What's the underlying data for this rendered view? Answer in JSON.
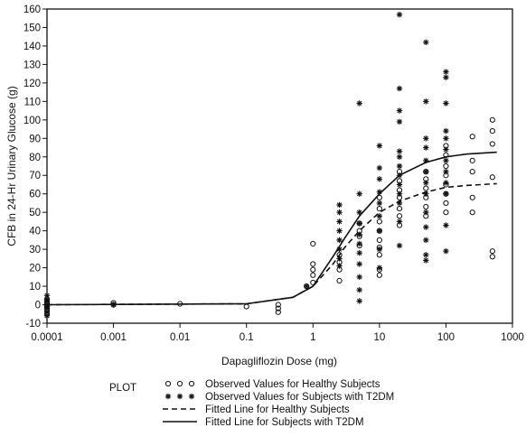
{
  "chart_data": {
    "type": "scatter",
    "title": "",
    "xlabel": "Dapagliflozin Dose (mg)",
    "ylabel": "CFB in 24-Hr Urinary Glucose (g)",
    "xscale": "log",
    "xlim": [
      0.0001,
      1000
    ],
    "ylim": [
      -10,
      160
    ],
    "xticks": [
      0.0001,
      0.001,
      0.01,
      0.1,
      1,
      10,
      100,
      1000
    ],
    "xtick_labels": [
      "0.0001",
      "0.001",
      "0.01",
      "0.1",
      "1",
      "10",
      "100",
      "1000"
    ],
    "yticks": [
      -10,
      0,
      10,
      20,
      30,
      40,
      50,
      60,
      70,
      80,
      90,
      100,
      110,
      120,
      130,
      140,
      150,
      160
    ],
    "ytick_labels": [
      "-10",
      "0",
      "10",
      "20",
      "30",
      "40",
      "50",
      "60",
      "70",
      "80",
      "90",
      "100",
      "110",
      "120",
      "130",
      "140",
      "150",
      "160"
    ],
    "grid": false,
    "legend_position": "bottom",
    "legend_title": "PLOT",
    "series": [
      {
        "name": "Observed Values for Healthy Subjects",
        "kind": "scatter",
        "marker": "circle-open",
        "points": [
          [
            0.0001,
            3
          ],
          [
            0.0001,
            1
          ],
          [
            0.0001,
            0
          ],
          [
            0.0001,
            -1
          ],
          [
            0.0001,
            -3
          ],
          [
            0.0001,
            -5
          ],
          [
            0.001,
            0
          ],
          [
            0.001,
            1
          ],
          [
            0.01,
            0.5
          ],
          [
            0.1,
            -1
          ],
          [
            0.3,
            -2
          ],
          [
            0.3,
            0
          ],
          [
            0.3,
            -4
          ],
          [
            0.8,
            10
          ],
          [
            1,
            12
          ],
          [
            1,
            16
          ],
          [
            1,
            19
          ],
          [
            1,
            22
          ],
          [
            1,
            33
          ],
          [
            2.5,
            13
          ],
          [
            2.5,
            19
          ],
          [
            2.5,
            23
          ],
          [
            2.5,
            27
          ],
          [
            5,
            32
          ],
          [
            5,
            37
          ],
          [
            5,
            40
          ],
          [
            5,
            44
          ],
          [
            10,
            16
          ],
          [
            10,
            19
          ],
          [
            10,
            27
          ],
          [
            10,
            31
          ],
          [
            10,
            35
          ],
          [
            10,
            40
          ],
          [
            10,
            45
          ],
          [
            10,
            52
          ],
          [
            10,
            58
          ],
          [
            20,
            43
          ],
          [
            20,
            48
          ],
          [
            20,
            52
          ],
          [
            20,
            58
          ],
          [
            20,
            62
          ],
          [
            20,
            67
          ],
          [
            20,
            72
          ],
          [
            50,
            48
          ],
          [
            50,
            53
          ],
          [
            50,
            58
          ],
          [
            50,
            63
          ],
          [
            50,
            68
          ],
          [
            50,
            72
          ],
          [
            100,
            50
          ],
          [
            100,
            55
          ],
          [
            100,
            60
          ],
          [
            100,
            65
          ],
          [
            100,
            70
          ],
          [
            100,
            75
          ],
          [
            100,
            81
          ],
          [
            100,
            86
          ],
          [
            250,
            50
          ],
          [
            250,
            58
          ],
          [
            250,
            72
          ],
          [
            250,
            78
          ],
          [
            250,
            91
          ],
          [
            500,
            26
          ],
          [
            500,
            29
          ],
          [
            500,
            69
          ],
          [
            500,
            87
          ],
          [
            500,
            94
          ],
          [
            500,
            100
          ]
        ]
      },
      {
        "name": "Observed Values for Subjects with T2DM",
        "kind": "scatter",
        "marker": "asterisk",
        "points": [
          [
            0.0001,
            5
          ],
          [
            0.0001,
            3
          ],
          [
            0.0001,
            2
          ],
          [
            0.0001,
            0
          ],
          [
            0.0001,
            -1
          ],
          [
            0.0001,
            -2
          ],
          [
            0.0001,
            -4
          ],
          [
            0.0001,
            -6
          ],
          [
            0.001,
            0
          ],
          [
            0.8,
            10
          ],
          [
            2.5,
            21
          ],
          [
            2.5,
            25
          ],
          [
            2.5,
            30
          ],
          [
            2.5,
            35
          ],
          [
            2.5,
            40
          ],
          [
            2.5,
            45
          ],
          [
            2.5,
            50
          ],
          [
            2.5,
            54
          ],
          [
            5,
            2
          ],
          [
            5,
            8
          ],
          [
            5,
            15
          ],
          [
            5,
            22
          ],
          [
            5,
            28
          ],
          [
            5,
            33
          ],
          [
            5,
            38
          ],
          [
            5,
            44
          ],
          [
            5,
            50
          ],
          [
            5,
            60
          ],
          [
            5,
            109
          ],
          [
            10,
            20
          ],
          [
            10,
            30
          ],
          [
            10,
            40
          ],
          [
            10,
            48
          ],
          [
            10,
            55
          ],
          [
            10,
            61
          ],
          [
            10,
            68
          ],
          [
            10,
            74
          ],
          [
            10,
            86
          ],
          [
            20,
            32
          ],
          [
            20,
            45
          ],
          [
            20,
            55
          ],
          [
            20,
            60
          ],
          [
            20,
            65
          ],
          [
            20,
            70
          ],
          [
            20,
            75
          ],
          [
            20,
            80
          ],
          [
            20,
            83
          ],
          [
            20,
            99
          ],
          [
            20,
            105
          ],
          [
            20,
            117
          ],
          [
            20,
            157
          ],
          [
            50,
            24
          ],
          [
            50,
            27
          ],
          [
            50,
            35
          ],
          [
            50,
            42
          ],
          [
            50,
            50
          ],
          [
            50,
            60
          ],
          [
            50,
            66
          ],
          [
            50,
            72
          ],
          [
            50,
            78
          ],
          [
            50,
            85
          ],
          [
            50,
            90
          ],
          [
            50,
            110
          ],
          [
            50,
            142
          ],
          [
            100,
            29
          ],
          [
            100,
            43
          ],
          [
            100,
            60
          ],
          [
            100,
            66
          ],
          [
            100,
            72
          ],
          [
            100,
            78
          ],
          [
            100,
            84
          ],
          [
            100,
            90
          ],
          [
            100,
            94
          ],
          [
            100,
            109
          ],
          [
            100,
            123
          ],
          [
            100,
            126
          ]
        ]
      },
      {
        "name": "Fitted Line for Healthy Subjects",
        "kind": "line",
        "style": "dashed",
        "points": [
          [
            0.0001,
            0
          ],
          [
            0.1,
            0.5
          ],
          [
            0.5,
            4
          ],
          [
            1,
            10
          ],
          [
            2,
            22
          ],
          [
            3,
            31
          ],
          [
            5,
            40
          ],
          [
            10,
            50
          ],
          [
            20,
            56
          ],
          [
            50,
            61
          ],
          [
            100,
            63.5
          ],
          [
            200,
            64.5
          ],
          [
            582,
            65.5
          ]
        ]
      },
      {
        "name": "Fitted Line for Subjects with T2DM",
        "kind": "line",
        "style": "solid",
        "points": [
          [
            0.0001,
            0
          ],
          [
            0.1,
            0.5
          ],
          [
            0.5,
            4
          ],
          [
            1,
            10
          ],
          [
            2,
            26
          ],
          [
            3,
            36
          ],
          [
            5,
            48
          ],
          [
            10,
            60
          ],
          [
            20,
            70
          ],
          [
            50,
            77
          ],
          [
            100,
            80
          ],
          [
            200,
            81.5
          ],
          [
            582,
            82.5
          ]
        ]
      }
    ]
  }
}
